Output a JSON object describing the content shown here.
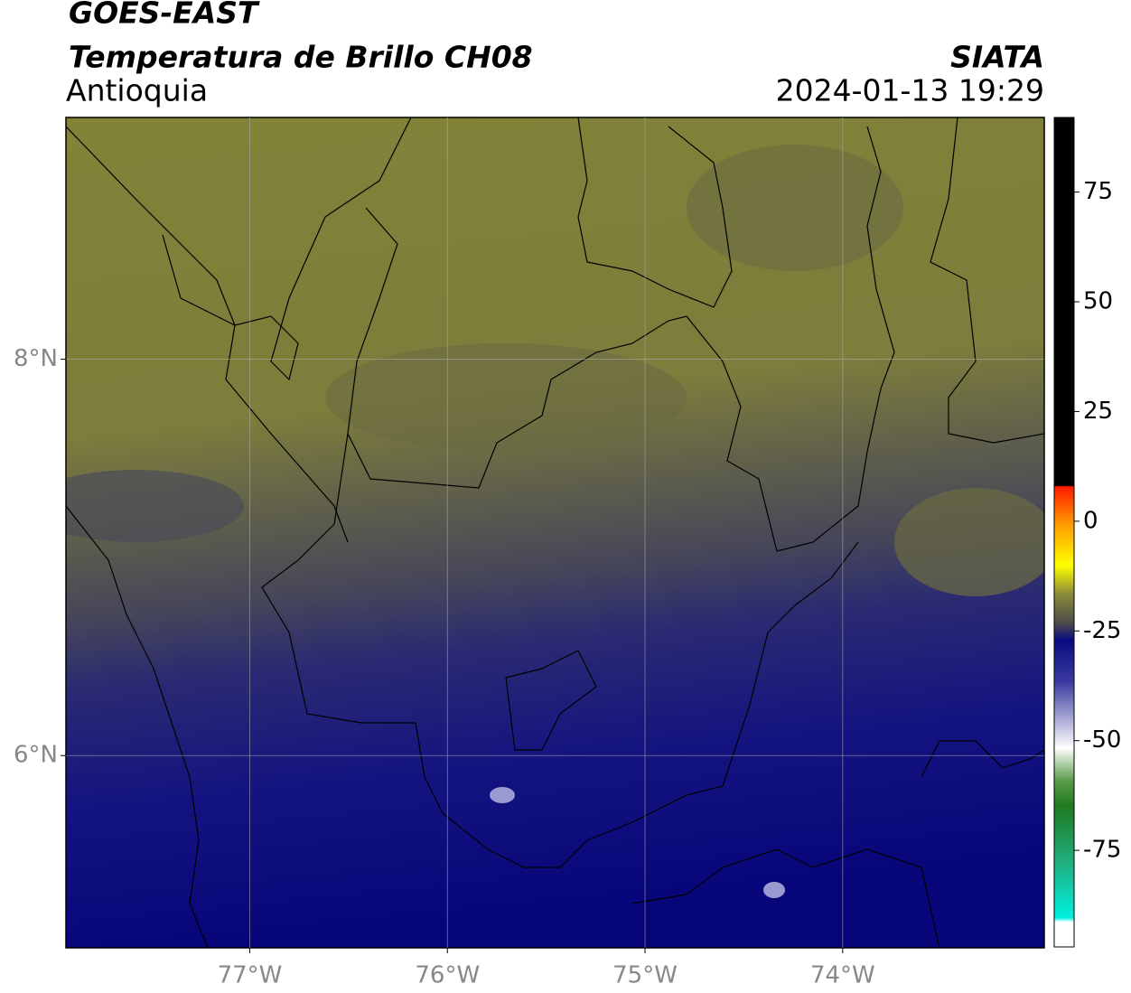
{
  "header": {
    "title": "GOES-EAST",
    "product": "Temperatura de Brillo CH08",
    "region": "Antioquia",
    "source": "SIATA",
    "datetime": "2024-01-13 19:29"
  },
  "map": {
    "xlim": [
      -77.93,
      -72.98
    ],
    "ylim": [
      5.03,
      9.22
    ],
    "xticks": [
      {
        "value": -77,
        "label": "77°W"
      },
      {
        "value": -76,
        "label": "76°W"
      },
      {
        "value": -75,
        "label": "75°W"
      },
      {
        "value": -74,
        "label": "74°W"
      }
    ],
    "yticks": [
      {
        "value": 8,
        "label": "8°N"
      },
      {
        "value": 6,
        "label": "6°N"
      }
    ],
    "grid": true
  },
  "colorbar": {
    "lim": [
      -97,
      92
    ],
    "ticks": [
      75,
      50,
      25,
      0,
      -25,
      -50,
      -75
    ]
  }
}
